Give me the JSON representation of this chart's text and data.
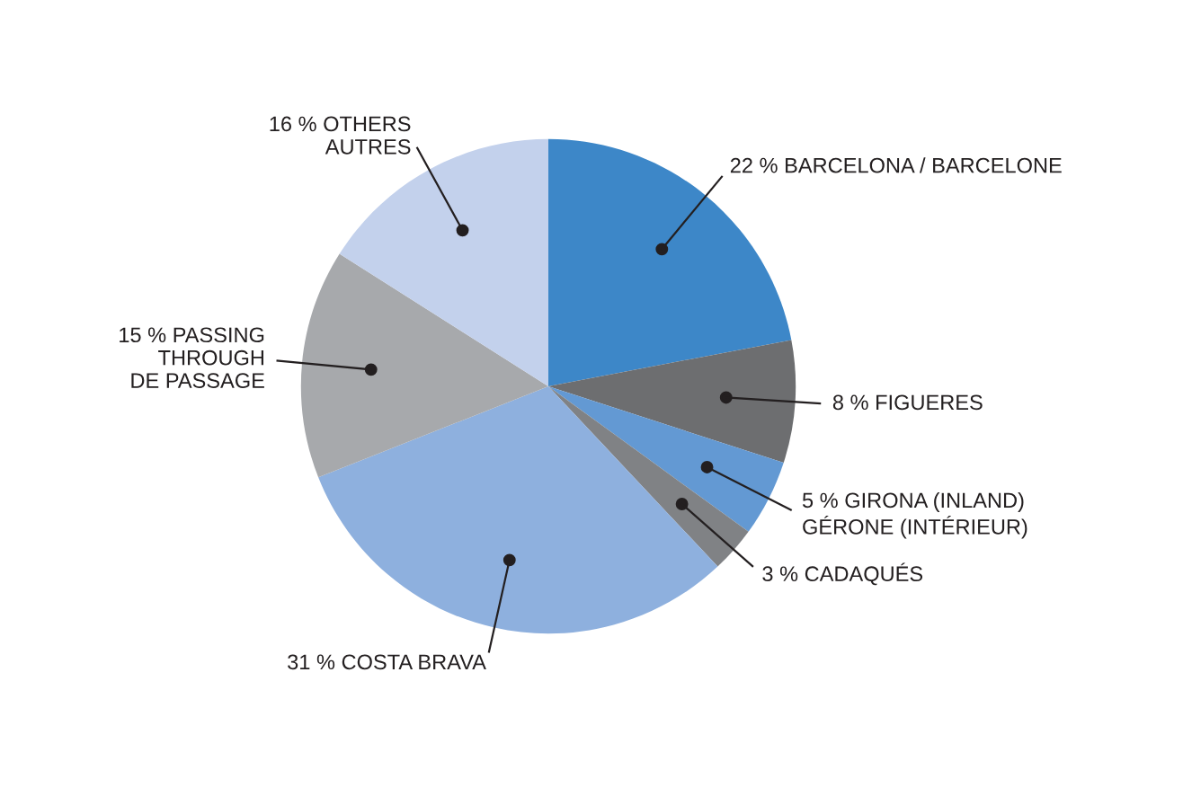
{
  "chart_data": {
    "type": "pie",
    "categories": [
      "BARCELONA / BARCELONE",
      "FIGUERES",
      "GIRONA (INLAND)\nGÉRONE (INTÉRIEUR)",
      "CADAQUÉS",
      "COSTA BRAVA",
      "PASSING\nTHROUGH\nDE PASSAGE",
      "OTHERS\nAUTRES"
    ],
    "values": [
      22,
      8,
      5,
      3,
      31,
      15,
      16
    ],
    "value_labels": [
      "22 %",
      "8 %",
      "5 %",
      "3 %",
      "31 %",
      "15 %",
      "16 %"
    ],
    "colors": [
      "#3d87c8",
      "#6d6e70",
      "#6399d3",
      "#808285",
      "#8eb0de",
      "#a7a9ac",
      "#c3d1ec"
    ]
  }
}
